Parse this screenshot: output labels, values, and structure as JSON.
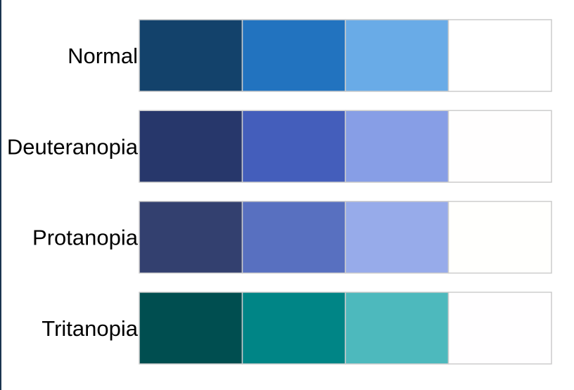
{
  "chart_data": {
    "type": "table",
    "rows": [
      {
        "label": "Normal",
        "swatches": [
          "#13426b",
          "#2273bf",
          "#69abe7",
          "#ffffff"
        ]
      },
      {
        "label": "Deuteranopia",
        "swatches": [
          "#27376b",
          "#445ebb",
          "#879ee6",
          "#fffefe"
        ]
      },
      {
        "label": "Protanopia",
        "swatches": [
          "#33406f",
          "#5870c0",
          "#97abea",
          "#fffffd"
        ]
      },
      {
        "label": "Tritanopia",
        "swatches": [
          "#004e50",
          "#008586",
          "#4db9bd",
          "#fffeff"
        ]
      }
    ],
    "swatch_border_color": "#cccccc",
    "title": "",
    "xlabel": "",
    "ylabel": "",
    "grid": false,
    "legend": "none"
  }
}
